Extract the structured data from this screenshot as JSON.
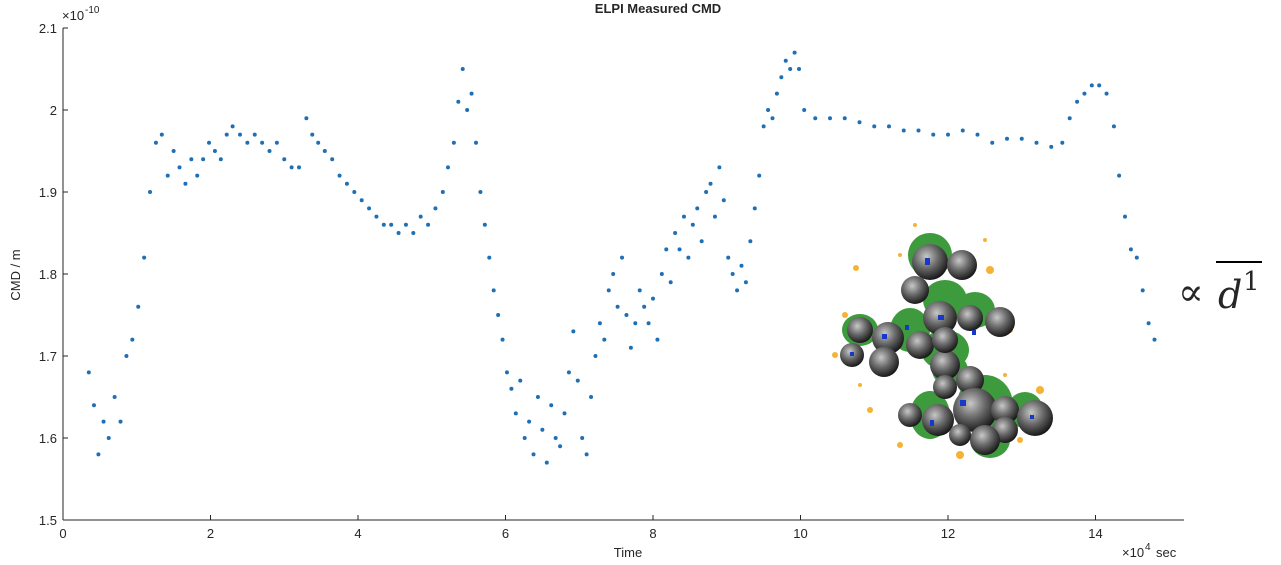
{
  "chart_data": {
    "type": "scatter",
    "title": "ELPI Measured CMD",
    "x_label": "Time",
    "y_label": "CMD / m",
    "y_multiplier": {
      "base": "×10",
      "exponent": "-10"
    },
    "x_multiplier": {
      "base": "×10",
      "exponent": "4",
      "unit": "sec"
    },
    "annotation": {
      "symbol": "∝",
      "base": "d",
      "exponent": "1"
    },
    "color": "#1f6fb5",
    "xlim": [
      0,
      15.2
    ],
    "ylim": [
      1.5,
      2.1
    ],
    "xticks": [
      0,
      2,
      4,
      6,
      8,
      10,
      12,
      14
    ],
    "yticks": [
      1.5,
      1.6,
      1.7,
      1.8,
      1.9,
      2,
      2.1
    ],
    "x": [
      0.35,
      0.42,
      0.48,
      0.55,
      0.62,
      0.7,
      0.78,
      0.86,
      0.94,
      1.02,
      1.1,
      1.18,
      1.26,
      1.34,
      1.42,
      1.5,
      1.58,
      1.66,
      1.74,
      1.82,
      1.9,
      1.98,
      2.06,
      2.14,
      2.22,
      2.3,
      2.4,
      2.5,
      2.6,
      2.7,
      2.8,
      2.9,
      3.0,
      3.1,
      3.2,
      3.3,
      3.38,
      3.46,
      3.55,
      3.65,
      3.75,
      3.85,
      3.95,
      4.05,
      4.15,
      4.25,
      4.35,
      4.45,
      4.55,
      4.65,
      4.75,
      4.85,
      4.95,
      5.05,
      5.15,
      5.22,
      5.3,
      5.36,
      5.42,
      5.48,
      5.54,
      5.6,
      5.66,
      5.72,
      5.78,
      5.84,
      5.9,
      5.96,
      6.02,
      6.08,
      6.14,
      6.2,
      6.26,
      6.32,
      6.38,
      6.44,
      6.5,
      6.56,
      6.62,
      6.68,
      6.74,
      6.8,
      6.86,
      6.92,
      6.98,
      7.04,
      7.1,
      7.16,
      7.22,
      7.28,
      7.34,
      7.4,
      7.46,
      7.52,
      7.58,
      7.64,
      7.7,
      7.76,
      7.82,
      7.88,
      7.94,
      8.0,
      8.06,
      8.12,
      8.18,
      8.24,
      8.3,
      8.36,
      8.42,
      8.48,
      8.54,
      8.6,
      8.66,
      8.72,
      8.78,
      8.84,
      8.9,
      8.96,
      9.02,
      9.08,
      9.14,
      9.2,
      9.26,
      9.32,
      9.38,
      9.44,
      9.5,
      9.56,
      9.62,
      9.68,
      9.74,
      9.8,
      9.86,
      9.92,
      9.98,
      10.05,
      10.2,
      10.4,
      10.6,
      10.8,
      11.0,
      11.2,
      11.4,
      11.6,
      11.8,
      12.0,
      12.2,
      12.4,
      12.6,
      12.8,
      13.0,
      13.2,
      13.4,
      13.55,
      13.65,
      13.75,
      13.85,
      13.95,
      14.05,
      14.15,
      14.25,
      14.32,
      14.4,
      14.48,
      14.56,
      14.64,
      14.72,
      14.8
    ],
    "values": [
      1.68,
      1.64,
      1.58,
      1.62,
      1.6,
      1.65,
      1.62,
      1.7,
      1.72,
      1.76,
      1.82,
      1.9,
      1.96,
      1.97,
      1.92,
      1.95,
      1.93,
      1.91,
      1.94,
      1.92,
      1.94,
      1.96,
      1.95,
      1.94,
      1.97,
      1.98,
      1.97,
      1.96,
      1.97,
      1.96,
      1.95,
      1.96,
      1.94,
      1.93,
      1.93,
      1.99,
      1.97,
      1.96,
      1.95,
      1.94,
      1.92,
      1.91,
      1.9,
      1.89,
      1.88,
      1.87,
      1.86,
      1.86,
      1.85,
      1.86,
      1.85,
      1.87,
      1.86,
      1.88,
      1.9,
      1.93,
      1.96,
      2.01,
      2.05,
      2.0,
      2.02,
      1.96,
      1.9,
      1.86,
      1.82,
      1.78,
      1.75,
      1.72,
      1.68,
      1.66,
      1.63,
      1.67,
      1.6,
      1.62,
      1.58,
      1.65,
      1.61,
      1.57,
      1.64,
      1.6,
      1.59,
      1.63,
      1.68,
      1.73,
      1.67,
      1.6,
      1.58,
      1.65,
      1.7,
      1.74,
      1.72,
      1.78,
      1.8,
      1.76,
      1.82,
      1.75,
      1.71,
      1.74,
      1.78,
      1.76,
      1.74,
      1.77,
      1.72,
      1.8,
      1.83,
      1.79,
      1.85,
      1.83,
      1.87,
      1.82,
      1.86,
      1.88,
      1.84,
      1.9,
      1.91,
      1.87,
      1.93,
      1.89,
      1.82,
      1.8,
      1.78,
      1.81,
      1.79,
      1.84,
      1.88,
      1.92,
      1.98,
      2.0,
      1.99,
      2.02,
      2.04,
      2.06,
      2.05,
      2.07,
      2.05,
      2.0,
      1.99,
      1.99,
      1.99,
      1.985,
      1.98,
      1.98,
      1.975,
      1.975,
      1.97,
      1.97,
      1.975,
      1.97,
      1.96,
      1.965,
      1.965,
      1.96,
      1.955,
      1.96,
      1.99,
      2.01,
      2.02,
      2.03,
      2.03,
      2.02,
      1.98,
      1.92,
      1.87,
      1.83,
      1.82,
      1.78,
      1.74,
      1.72
    ]
  }
}
